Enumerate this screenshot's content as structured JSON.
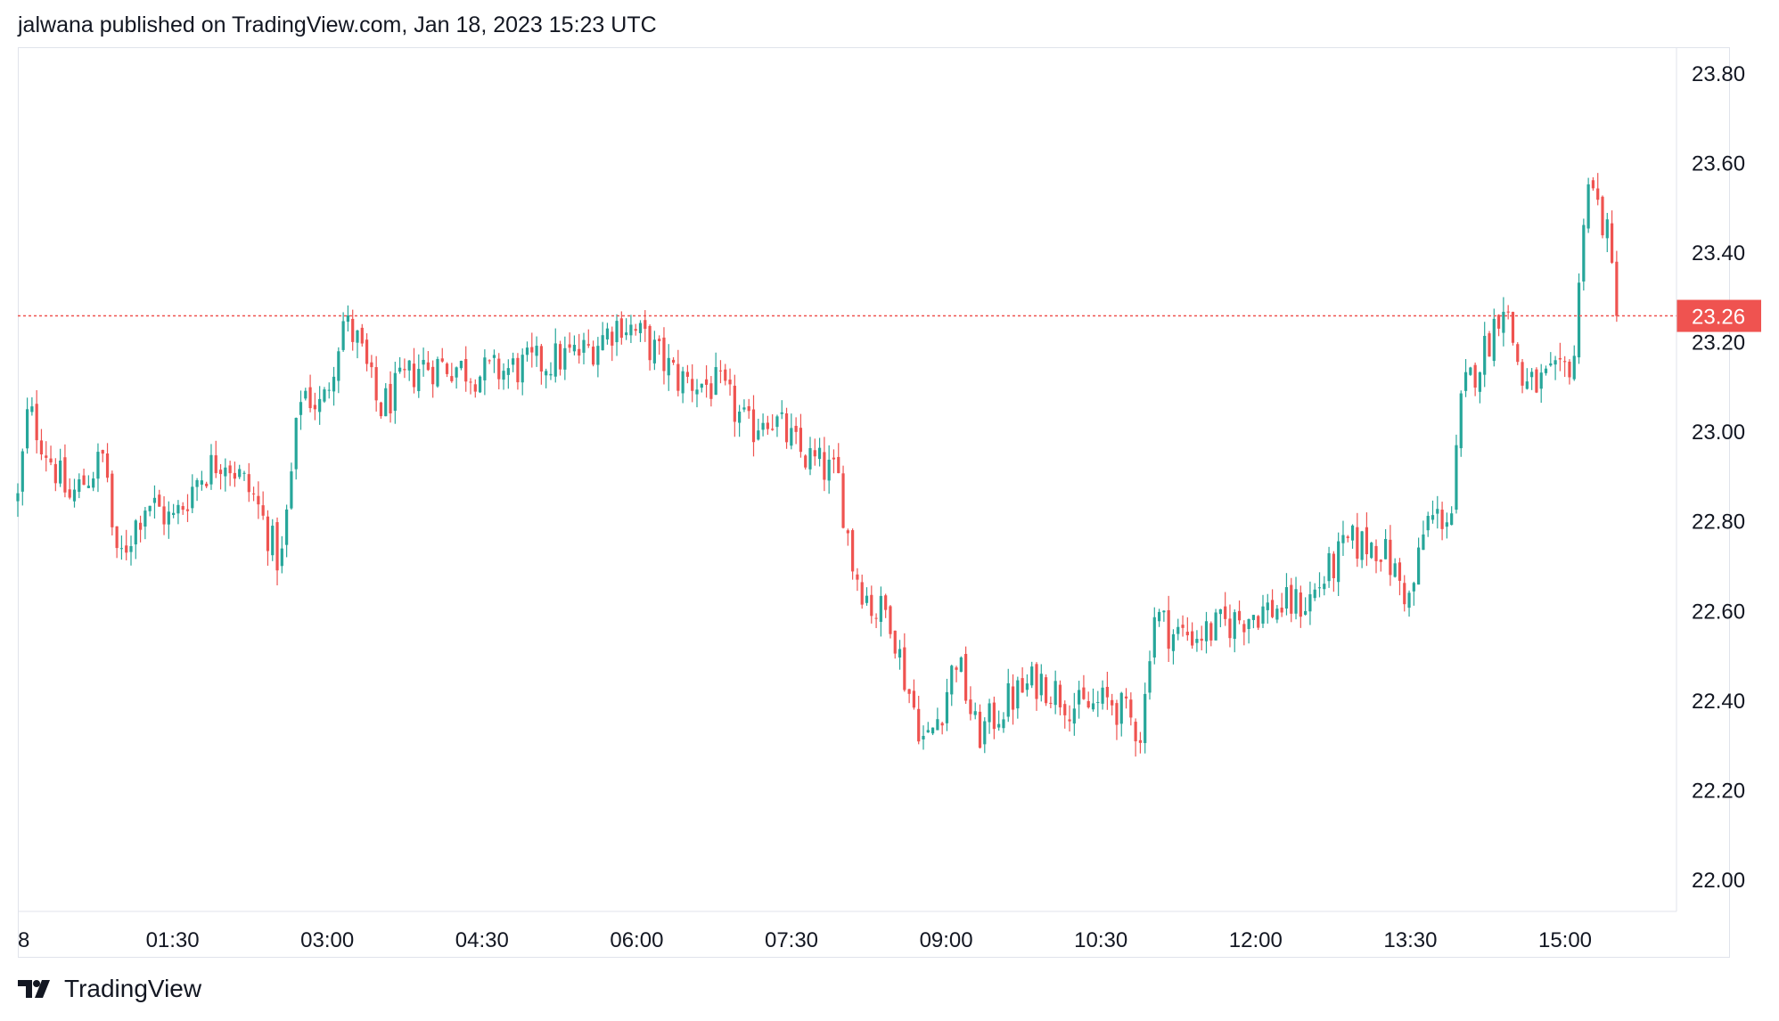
{
  "header": {
    "text": "jalwana published on TradingView.com, Jan 18, 2023 15:23 UTC"
  },
  "footer": {
    "brand": "TradingView"
  },
  "colors": {
    "up": "#26a69a",
    "down": "#ef5350",
    "price_line": "#ef5350",
    "axis_text": "#131722",
    "grid": "#e0e3eb"
  },
  "chart_data": {
    "type": "candlestick",
    "title": "",
    "xlabel": "",
    "ylabel": "",
    "ylim": [
      21.93,
      23.86
    ],
    "y_ticks": [
      "23.80",
      "23.60",
      "23.40",
      "23.20",
      "23.00",
      "22.80",
      "22.60",
      "22.40",
      "22.20",
      "22.00"
    ],
    "x_ticks": [
      {
        "label": "8",
        "hour": 0.0
      },
      {
        "label": "01:30",
        "hour": 1.5
      },
      {
        "label": "03:00",
        "hour": 3.0
      },
      {
        "label": "04:30",
        "hour": 4.5
      },
      {
        "label": "06:00",
        "hour": 6.0
      },
      {
        "label": "07:30",
        "hour": 7.5
      },
      {
        "label": "09:00",
        "hour": 9.0
      },
      {
        "label": "10:30",
        "hour": 10.5
      },
      {
        "label": "12:00",
        "hour": 12.0
      },
      {
        "label": "13:30",
        "hour": 13.5
      },
      {
        "label": "15:00",
        "hour": 15.0
      }
    ],
    "x_range_hours": [
      0.0,
      16.08
    ],
    "last_price": {
      "value": 23.26,
      "label": "23.26"
    },
    "anchor_hours": [
      0.0,
      0.1,
      0.5,
      0.85,
      0.95,
      1.25,
      1.5,
      1.75,
      2.0,
      2.3,
      2.55,
      2.75,
      2.95,
      3.15,
      3.3,
      3.5,
      3.9,
      4.2,
      4.5,
      5.0,
      5.5,
      5.85,
      6.1,
      6.4,
      6.8,
      7.1,
      7.25,
      7.6,
      7.95,
      8.1,
      8.3,
      8.45,
      8.6,
      8.8,
      8.95,
      9.1,
      9.3,
      9.6,
      9.9,
      10.3,
      10.6,
      10.9,
      11.0,
      11.2,
      11.5,
      12.0,
      12.5,
      12.9,
      13.2,
      13.5,
      13.65,
      13.9,
      14.0,
      14.25,
      14.4,
      14.6,
      14.95,
      15.1,
      15.2,
      15.4,
      15.5
    ],
    "anchor_prices": [
      22.85,
      23.05,
      22.85,
      22.95,
      22.7,
      22.85,
      22.8,
      22.9,
      22.95,
      22.85,
      22.7,
      23.1,
      23.05,
      23.25,
      23.2,
      23.05,
      23.15,
      23.15,
      23.13,
      23.15,
      23.18,
      23.25,
      23.2,
      23.12,
      23.1,
      23.0,
      23.05,
      22.95,
      22.9,
      22.7,
      22.6,
      22.6,
      22.45,
      22.3,
      22.38,
      22.5,
      22.32,
      22.4,
      22.45,
      22.38,
      22.4,
      22.33,
      22.6,
      22.55,
      22.55,
      22.6,
      22.62,
      22.75,
      22.75,
      22.62,
      22.8,
      22.82,
      23.08,
      23.2,
      23.3,
      23.1,
      23.12,
      23.18,
      23.58,
      23.45,
      23.28
    ],
    "bar_count": 340,
    "series": [
      {
        "type": "ohlc",
        "source": "synthetic from anchors",
        "up_color": "#26a69a",
        "down_color": "#ef5350"
      }
    ]
  }
}
